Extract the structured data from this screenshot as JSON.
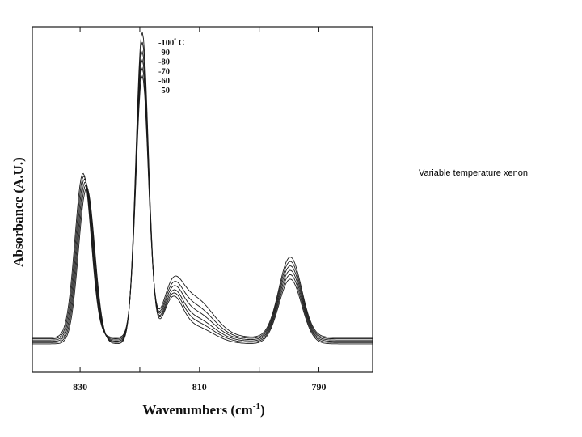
{
  "side_caption": "Variable temperature xenon",
  "colors": {
    "ink": "#1a1a1a",
    "background": "#ffffff"
  },
  "chart_data": {
    "type": "line",
    "title": "",
    "xlabel": "Wavenumbers (cm",
    "xlabel_superscript": "-1",
    "xlabel_close": ")",
    "ylabel": "Absorbance (A.U.)",
    "xlim": [
      838,
      781
    ],
    "ylim": [
      0,
      1
    ],
    "x_reversed": true,
    "y_ticks_shown": false,
    "x_ticks": [
      830,
      820,
      810,
      800,
      790
    ],
    "x_tick_labels": [
      "830",
      "810",
      "790"
    ],
    "legend": {
      "placement": "top-center",
      "entries": [
        "-100",
        "-90",
        "-80",
        "-70",
        "-60",
        "-50"
      ],
      "first_suffix": "C"
    },
    "series": [
      {
        "name": "-100° C",
        "peak1": 0.495,
        "peak2": 0.985,
        "shoulder": 0.055,
        "peak3": 0.205,
        "offset": -0.01
      },
      {
        "name": "-90",
        "peak1": 0.5,
        "peak2": 0.95,
        "shoulder": 0.065,
        "peak3": 0.215,
        "offset": 0.0
      },
      {
        "name": "-80",
        "peak1": 0.505,
        "peak2": 0.915,
        "shoulder": 0.075,
        "peak3": 0.225,
        "offset": 0.01
      },
      {
        "name": "-70",
        "peak1": 0.51,
        "peak2": 0.885,
        "shoulder": 0.09,
        "peak3": 0.235,
        "offset": 0.02
      },
      {
        "name": "-60",
        "peak1": 0.515,
        "peak2": 0.855,
        "shoulder": 0.105,
        "peak3": 0.245,
        "offset": 0.03
      },
      {
        "name": "-50",
        "peak1": 0.52,
        "peak2": 0.825,
        "shoulder": 0.125,
        "peak3": 0.255,
        "offset": 0.04
      }
    ],
    "peak_positions": {
      "peak1": 829.2,
      "peak2": 819.6,
      "shoulder": 811.0,
      "peak3": 794.8
    }
  }
}
